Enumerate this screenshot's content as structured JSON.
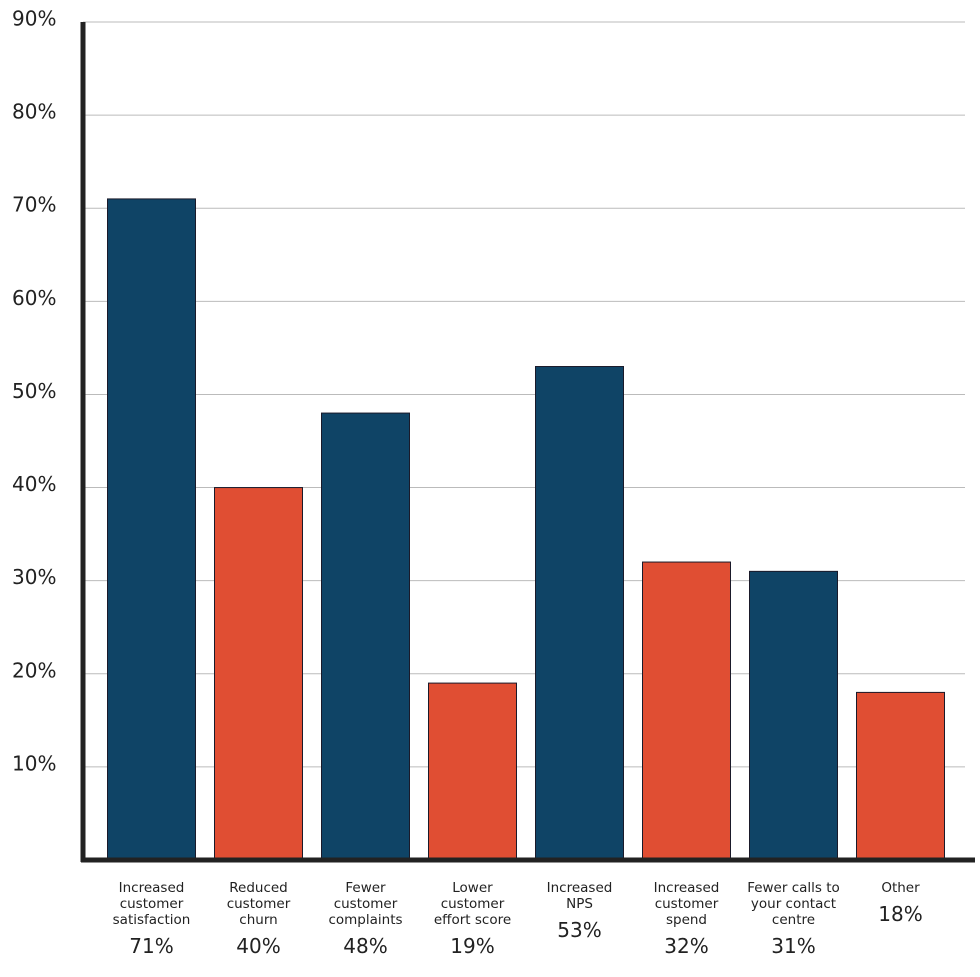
{
  "chart_data": {
    "type": "bar",
    "categories": [
      "Increased customer satisfaction",
      "Reduced customer churn",
      "Fewer customer complaints",
      "Lower customer effort score",
      "Increased NPS",
      "Increased customer spend",
      "Fewer calls to your contact centre",
      "Other"
    ],
    "values": [
      71,
      40,
      48,
      19,
      53,
      32,
      31,
      18
    ],
    "value_labels": [
      "71%",
      "40%",
      "48%",
      "19%",
      "53%",
      "32%",
      "31%",
      "18%"
    ],
    "colors": [
      "#0f4466",
      "#e04e33",
      "#0f4466",
      "#e04e33",
      "#0f4466",
      "#e04e33",
      "#0f4466",
      "#e04e33"
    ],
    "ylim": [
      0,
      90
    ],
    "yticks": [
      {
        "value": 10,
        "label": "10%"
      },
      {
        "value": 20,
        "label": "20%"
      },
      {
        "value": 30,
        "label": "30%"
      },
      {
        "value": 40,
        "label": "40%"
      },
      {
        "value": 50,
        "label": "50%"
      },
      {
        "value": 60,
        "label": "60%"
      },
      {
        "value": 70,
        "label": "70%"
      },
      {
        "value": 80,
        "label": "80%"
      },
      {
        "value": 90,
        "label": "90%"
      }
    ],
    "grid": true
  }
}
